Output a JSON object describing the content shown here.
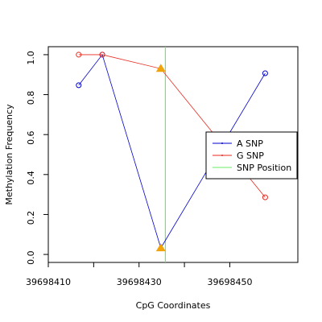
{
  "chart_data": {
    "type": "line",
    "xlabel": "CpG Coordinates",
    "ylabel": "Methylation Frequency",
    "xlim": [
      39698410,
      39698465
    ],
    "ylim": [
      -0.04,
      1.04
    ],
    "xticks": [
      {
        "value": 39698410,
        "label": "39698410"
      },
      {
        "value": 39698420,
        "label": null
      },
      {
        "value": 39698430,
        "label": "39698430"
      },
      {
        "value": 39698440,
        "label": null
      },
      {
        "value": 39698450,
        "label": "39698450"
      }
    ],
    "yticks": [
      {
        "value": 0,
        "label": "0.0"
      },
      {
        "value": 0.2,
        "label": "0.2"
      },
      {
        "value": 0.4,
        "label": "0.4"
      },
      {
        "value": 0.6,
        "label": "0.6"
      },
      {
        "value": 0.8,
        "label": "0.8"
      },
      {
        "value": 1,
        "label": "1.0"
      }
    ],
    "series": [
      {
        "name": "A SNP",
        "color": "#0000cc",
        "highlight_index": 2,
        "x": [
          39698416.7,
          39698421.9,
          39698434.8,
          39698457.8
        ],
        "values": [
          0.847,
          1.0,
          0.032,
          0.907
        ]
      },
      {
        "name": "G SNP",
        "color": "#e8281e",
        "highlight_index": 2,
        "x": [
          39698416.7,
          39698421.9,
          39698434.8,
          39698457.8
        ],
        "values": [
          1.0,
          1.0,
          0.93,
          0.286
        ]
      }
    ],
    "snp_position": {
      "name": "SNP Position",
      "color": "#66ee66",
      "x": 39698435.8
    },
    "highlight_color": "#f0a30a",
    "legend": "right"
  }
}
